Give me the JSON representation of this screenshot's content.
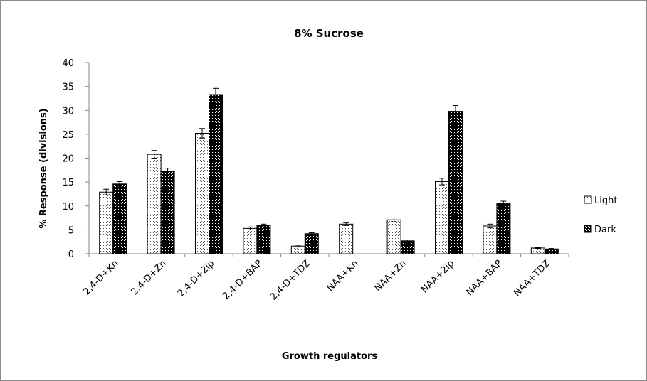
{
  "chart_data": {
    "type": "bar",
    "title": "8% Sucrose",
    "xlabel": "Growth regulators",
    "ylabel": "% Response  (divisions)",
    "ylim": [
      0,
      40
    ],
    "yticks": [
      0,
      5,
      10,
      15,
      20,
      25,
      30,
      35,
      40
    ],
    "grid": false,
    "legend_position": "right",
    "error_bars": true,
    "categories": [
      "2,4-D+Kn",
      "2,4-D+Zn",
      "2,4-D+2ip",
      "2,4-D+BAP",
      "2,4-D+TDZ",
      "NAA+Kn",
      "NAA+Zn",
      "NAA+2ip",
      "NAA+BAP",
      "NAA+TDZ"
    ],
    "series": [
      {
        "name": "Light",
        "pattern": "dotted",
        "values": [
          12.9,
          20.8,
          25.2,
          5.3,
          1.6,
          6.2,
          7.1,
          15.1,
          5.8,
          1.2
        ],
        "errors": [
          0.6,
          0.8,
          1.0,
          0.3,
          0.2,
          0.3,
          0.4,
          0.7,
          0.4,
          0.1
        ]
      },
      {
        "name": "Dark",
        "pattern": "dense",
        "values": [
          14.6,
          17.2,
          33.3,
          6.0,
          4.2,
          0.0,
          2.7,
          29.8,
          10.5,
          1.0
        ],
        "errors": [
          0.5,
          0.7,
          1.3,
          0.2,
          0.2,
          0.0,
          0.2,
          1.2,
          0.5,
          0.1
        ]
      }
    ]
  }
}
